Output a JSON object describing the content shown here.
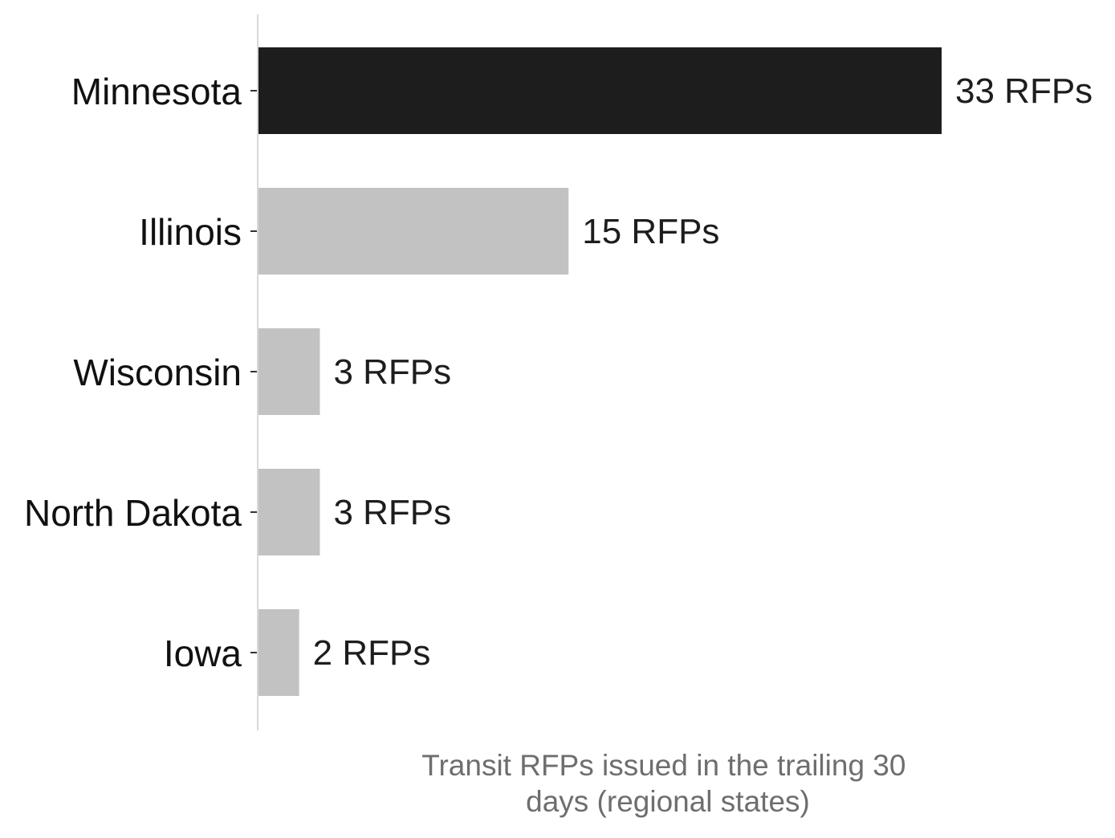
{
  "chart_data": {
    "type": "bar",
    "orientation": "horizontal",
    "categories": [
      "Minnesota",
      "Illinois",
      "Wisconsin",
      "North Dakota",
      "Iowa"
    ],
    "values": [
      33,
      15,
      3,
      3,
      2
    ],
    "value_labels": [
      "33 RFPs",
      "15 RFPs",
      "3 RFPs",
      "3 RFPs",
      "2 RFPs"
    ],
    "highlight_index": 0,
    "colors": {
      "highlight": "#1d1d1d",
      "default": "#c2c2c2",
      "axis": "#d9d9d9",
      "tick": "#333333"
    },
    "xlabel_lines": [
      "Transit RFPs issued in the trailing 30",
      "days (regional states)"
    ],
    "title": "",
    "ylabel": "",
    "xlim": [
      0,
      33
    ],
    "grid": false,
    "legend": "none"
  }
}
